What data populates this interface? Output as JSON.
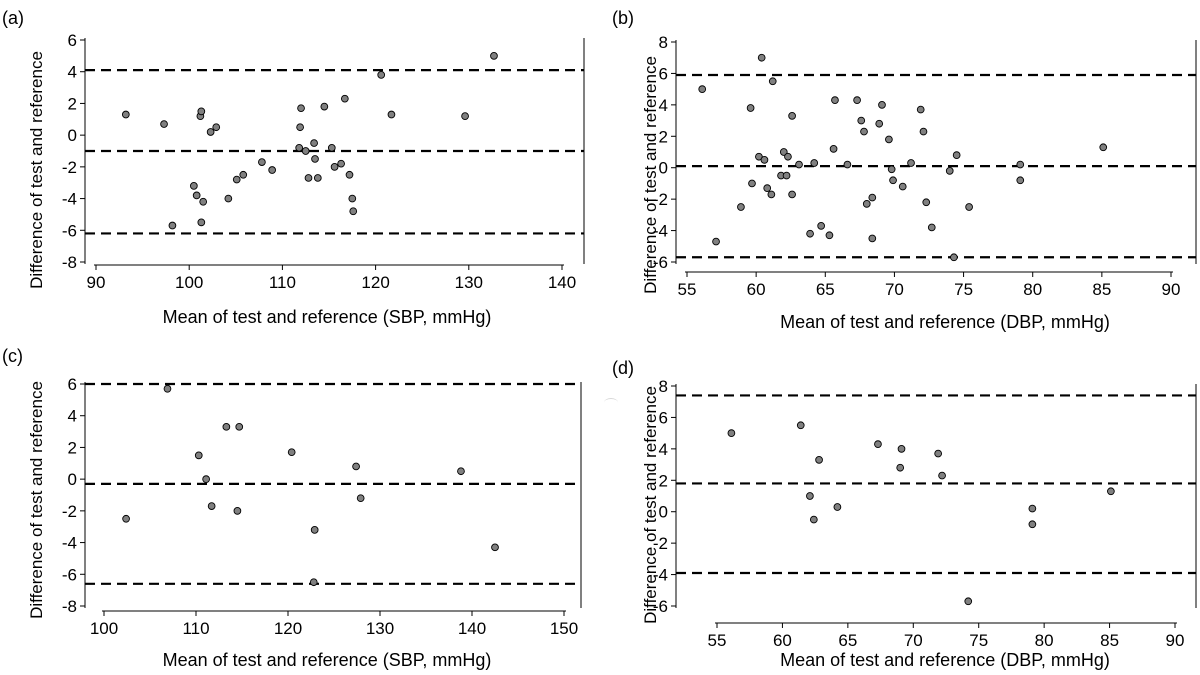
{
  "panels": [
    {
      "id": "a",
      "panel_label": "(a)",
      "xlabel": "Mean of test and reference (SBP, mmHg)",
      "ylabel": "Difference of test and reference",
      "xlim": [
        90,
        140
      ],
      "ylim": [
        -8,
        6
      ],
      "xticks": [
        90,
        100,
        110,
        120,
        130,
        140
      ],
      "yticks": [
        -8,
        -6,
        -4,
        -2,
        0,
        2,
        4,
        6
      ]
    },
    {
      "id": "b",
      "panel_label": "(b)",
      "xlabel": "Mean of test and reference (DBP, mmHg)",
      "ylabel": "Difference of test and reference",
      "xlim": [
        55,
        90
      ],
      "ylim": [
        -6,
        8
      ],
      "xticks": [
        55,
        60,
        65,
        70,
        75,
        80,
        85,
        90
      ],
      "yticks": [
        -6,
        -4,
        -2,
        0,
        2,
        4,
        6,
        8
      ]
    },
    {
      "id": "c",
      "panel_label": "(c)",
      "xlabel": "Mean of test and reference (SBP, mmHg)",
      "ylabel": "Difference of test and reference",
      "xlim": [
        100,
        150
      ],
      "ylim": [
        -8,
        6
      ],
      "xticks": [
        100,
        110,
        120,
        130,
        140,
        150
      ],
      "yticks": [
        -8,
        -6,
        -4,
        -2,
        0,
        2,
        4,
        6
      ]
    },
    {
      "id": "d",
      "panel_label": "(d)",
      "xlabel": "Mean of test and reference (DBP, mmHg)",
      "ylabel": "Difference of test and reference",
      "xlim": [
        55,
        90
      ],
      "ylim": [
        -6,
        8
      ],
      "xticks": [
        55,
        60,
        65,
        70,
        75,
        80,
        85,
        90
      ],
      "yticks": [
        -6,
        -4,
        -2,
        0,
        2,
        4,
        6,
        8
      ]
    }
  ],
  "chart_data": [
    {
      "type": "scatter",
      "panel": "(a)",
      "xlabel": "Mean of test and reference (SBP, mmHg)",
      "ylabel": "Difference of test and reference",
      "xlim": [
        90,
        140
      ],
      "ylim": [
        -8,
        6
      ],
      "grid": false,
      "point_color": "#808080",
      "reference_lines": [
        4.1,
        -1.0,
        -6.2
      ],
      "points": [
        [
          93.2,
          1.3
        ],
        [
          97.3,
          0.7
        ],
        [
          98.2,
          -5.7
        ],
        [
          100.5,
          -3.2
        ],
        [
          100.8,
          -3.8
        ],
        [
          101.2,
          1.2
        ],
        [
          101.3,
          1.5
        ],
        [
          101.3,
          -5.5
        ],
        [
          101.5,
          -4.2
        ],
        [
          102.3,
          0.2
        ],
        [
          102.9,
          0.5
        ],
        [
          104.2,
          -4.0
        ],
        [
          105.1,
          -2.8
        ],
        [
          105.8,
          -2.5
        ],
        [
          107.8,
          -1.7
        ],
        [
          108.9,
          -2.2
        ],
        [
          111.8,
          -0.8
        ],
        [
          111.9,
          0.5
        ],
        [
          112.0,
          1.7
        ],
        [
          112.5,
          -1.0
        ],
        [
          112.8,
          -2.7
        ],
        [
          113.4,
          -0.5
        ],
        [
          113.5,
          -1.5
        ],
        [
          113.8,
          -2.7
        ],
        [
          114.5,
          1.8
        ],
        [
          115.3,
          -0.8
        ],
        [
          115.6,
          -2.0
        ],
        [
          116.3,
          -1.8
        ],
        [
          116.7,
          2.3
        ],
        [
          117.2,
          -2.5
        ],
        [
          117.5,
          -4.0
        ],
        [
          117.6,
          -4.8
        ],
        [
          120.6,
          3.8
        ],
        [
          121.7,
          1.3
        ],
        [
          129.6,
          1.2
        ],
        [
          132.7,
          5.0
        ]
      ]
    },
    {
      "type": "scatter",
      "panel": "(b)",
      "xlabel": "Mean of test and reference (DBP, mmHg)",
      "ylabel": "Difference of test and reference",
      "xlim": [
        55,
        90
      ],
      "ylim": [
        -6,
        8
      ],
      "grid": false,
      "point_color": "#808080",
      "reference_lines": [
        5.9,
        0.1,
        -5.7
      ],
      "points": [
        [
          56.1,
          5.0
        ],
        [
          57.1,
          -4.7
        ],
        [
          58.9,
          -2.5
        ],
        [
          59.6,
          3.8
        ],
        [
          59.7,
          -1.0
        ],
        [
          60.2,
          0.7
        ],
        [
          60.4,
          7.0
        ],
        [
          60.6,
          0.5
        ],
        [
          60.8,
          -1.3
        ],
        [
          61.1,
          -1.7
        ],
        [
          61.2,
          5.5
        ],
        [
          61.8,
          -0.5
        ],
        [
          62.0,
          1.0
        ],
        [
          62.2,
          -0.5
        ],
        [
          62.3,
          0.7
        ],
        [
          62.6,
          3.3
        ],
        [
          62.6,
          -1.7
        ],
        [
          63.1,
          0.2
        ],
        [
          63.9,
          -4.2
        ],
        [
          64.2,
          0.3
        ],
        [
          64.7,
          -3.7
        ],
        [
          65.3,
          -4.3
        ],
        [
          65.6,
          1.2
        ],
        [
          65.7,
          4.3
        ],
        [
          66.6,
          0.2
        ],
        [
          67.3,
          4.3
        ],
        [
          67.6,
          3.0
        ],
        [
          67.8,
          2.3
        ],
        [
          68.0,
          -2.3
        ],
        [
          68.4,
          -1.9
        ],
        [
          68.4,
          -4.5
        ],
        [
          68.9,
          2.8
        ],
        [
          69.1,
          4.0
        ],
        [
          69.6,
          1.8
        ],
        [
          69.8,
          -0.1
        ],
        [
          69.9,
          -0.8
        ],
        [
          70.6,
          -1.2
        ],
        [
          71.2,
          0.3
        ],
        [
          71.9,
          3.7
        ],
        [
          72.1,
          2.3
        ],
        [
          72.3,
          -2.2
        ],
        [
          72.7,
          -3.8
        ],
        [
          74.0,
          -0.2
        ],
        [
          74.3,
          -5.7
        ],
        [
          74.5,
          0.8
        ],
        [
          75.4,
          -2.5
        ],
        [
          79.1,
          0.2
        ],
        [
          79.1,
          -0.8
        ],
        [
          85.1,
          1.3
        ]
      ]
    },
    {
      "type": "scatter",
      "panel": "(c)",
      "xlabel": "Mean of test and reference (SBP, mmHg)",
      "ylabel": "Difference of test and reference",
      "xlim": [
        100,
        150
      ],
      "ylim": [
        -8,
        6
      ],
      "grid": false,
      "point_color": "#808080",
      "reference_lines": [
        6.0,
        -0.3,
        -6.6
      ],
      "points": [
        [
          102.4,
          -2.5
        ],
        [
          106.9,
          5.7
        ],
        [
          110.3,
          1.5
        ],
        [
          111.1,
          0.0
        ],
        [
          111.7,
          -1.7
        ],
        [
          113.3,
          3.3
        ],
        [
          114.7,
          3.3
        ],
        [
          114.5,
          -2.0
        ],
        [
          120.4,
          1.7
        ],
        [
          122.9,
          -3.2
        ],
        [
          122.8,
          -6.5
        ],
        [
          127.4,
          0.8
        ],
        [
          127.9,
          -1.2
        ],
        [
          138.8,
          0.5
        ],
        [
          142.5,
          -4.3
        ]
      ]
    },
    {
      "type": "scatter",
      "panel": "(d)",
      "xlabel": "Mean of test and reference (DBP, mmHg)",
      "ylabel": "Difference of test and reference",
      "xlim": [
        55,
        90
      ],
      "ylim": [
        -6,
        8
      ],
      "grid": false,
      "point_color": "#808080",
      "reference_lines": [
        7.4,
        1.8,
        -3.9
      ],
      "points": [
        [
          56.1,
          5.0
        ],
        [
          61.4,
          5.5
        ],
        [
          62.1,
          1.0
        ],
        [
          62.4,
          -0.5
        ],
        [
          62.8,
          3.3
        ],
        [
          64.2,
          0.3
        ],
        [
          67.3,
          4.3
        ],
        [
          69.0,
          2.8
        ],
        [
          69.1,
          4.0
        ],
        [
          71.9,
          3.7
        ],
        [
          72.2,
          2.3
        ],
        [
          74.2,
          -5.7
        ],
        [
          79.1,
          0.2
        ],
        [
          79.1,
          -0.8
        ],
        [
          85.1,
          1.3
        ]
      ]
    }
  ]
}
